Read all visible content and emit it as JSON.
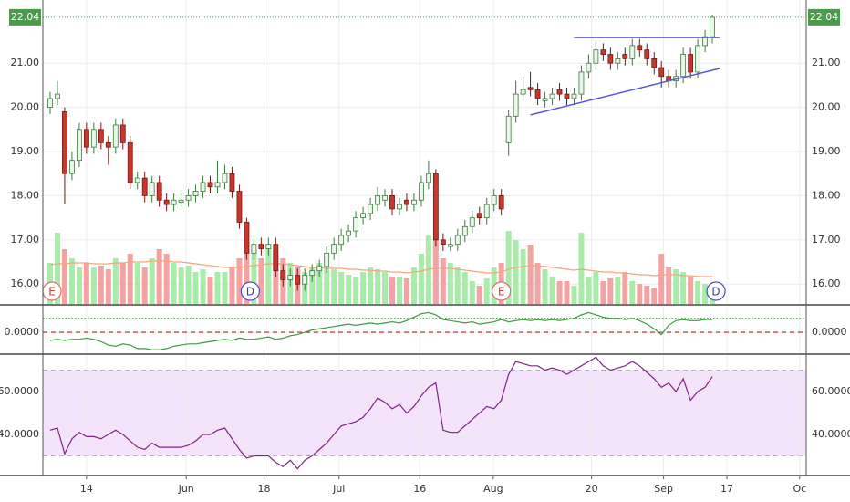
{
  "chart_data": [
    {
      "type": "candlestick",
      "open": [
        20.0,
        20.2,
        19.9,
        18.5,
        18.8,
        19.5,
        19.1,
        19.5,
        19.2,
        19.1,
        19.6,
        19.2,
        18.3,
        18.4,
        18.0,
        18.3,
        17.9,
        17.8,
        17.85,
        17.9,
        18.0,
        18.1,
        18.3,
        18.2,
        18.3,
        18.5,
        18.1,
        17.4,
        16.7,
        16.9,
        16.8,
        16.9,
        16.3,
        16.1,
        16.2,
        16.0,
        16.2,
        16.3,
        16.4,
        16.7,
        16.9,
        17.1,
        17.2,
        17.5,
        17.6,
        17.8,
        17.9,
        18.0,
        17.7,
        17.9,
        17.8,
        17.9,
        18.3,
        18.5,
        17.0,
        16.85,
        16.9,
        17.1,
        17.3,
        17.6,
        17.5,
        17.8,
        18.0,
        19.2,
        19.8,
        20.3,
        20.45,
        20.4,
        20.15,
        20.2,
        20.4,
        20.3,
        20.2,
        20.3,
        20.8,
        21.0,
        21.3,
        21.2,
        21.0,
        21.2,
        21.1,
        21.4,
        21.3,
        21.1,
        20.9,
        20.7,
        20.6,
        20.7,
        21.2,
        20.8,
        21.4,
        21.6
      ],
      "high": [
        20.35,
        20.6,
        20.0,
        19.0,
        19.65,
        19.65,
        19.65,
        19.65,
        19.35,
        19.75,
        19.75,
        19.35,
        18.55,
        18.55,
        18.45,
        18.45,
        18.05,
        18.05,
        18.05,
        18.15,
        18.25,
        18.45,
        18.45,
        18.8,
        18.7,
        18.65,
        18.25,
        17.5,
        17.1,
        17.05,
        17.05,
        17.05,
        16.45,
        16.35,
        16.35,
        16.35,
        16.45,
        16.55,
        16.85,
        17.05,
        17.25,
        17.35,
        17.65,
        17.75,
        17.95,
        18.2,
        18.15,
        18.15,
        17.95,
        18.05,
        18.05,
        18.45,
        18.8,
        18.6,
        17.15,
        17.05,
        17.25,
        17.45,
        17.65,
        17.75,
        17.95,
        18.15,
        18.15,
        19.95,
        20.6,
        20.7,
        20.8,
        20.55,
        20.35,
        20.45,
        20.55,
        20.45,
        20.45,
        20.95,
        21.2,
        21.55,
        21.45,
        21.35,
        21.25,
        21.35,
        21.55,
        21.55,
        21.45,
        21.25,
        21.05,
        20.85,
        20.85,
        21.35,
        21.35,
        21.55,
        21.75,
        22.1
      ],
      "low": [
        19.85,
        20.05,
        17.8,
        18.35,
        18.65,
        18.95,
        18.95,
        19.05,
        18.7,
        18.95,
        19.05,
        18.15,
        18.15,
        17.85,
        17.85,
        17.75,
        17.65,
        17.65,
        17.75,
        17.75,
        17.85,
        17.95,
        18.05,
        18.05,
        18.15,
        17.95,
        17.25,
        16.55,
        16.55,
        16.65,
        16.65,
        16.15,
        15.95,
        15.95,
        15.85,
        15.85,
        16.05,
        16.15,
        16.25,
        16.55,
        16.75,
        16.95,
        17.05,
        17.35,
        17.45,
        17.65,
        17.75,
        17.55,
        17.55,
        17.65,
        17.65,
        17.75,
        18.15,
        16.85,
        16.75,
        16.75,
        16.75,
        16.95,
        17.15,
        17.35,
        17.35,
        17.65,
        17.55,
        18.9,
        19.65,
        20.15,
        20.25,
        20.05,
        20.0,
        20.05,
        20.15,
        20.05,
        20.05,
        20.15,
        20.65,
        20.85,
        21.05,
        20.85,
        20.85,
        20.95,
        20.95,
        21.15,
        20.95,
        20.75,
        20.45,
        20.45,
        20.45,
        20.55,
        20.65,
        20.65,
        21.25,
        21.45
      ],
      "close": [
        20.2,
        20.3,
        18.5,
        18.8,
        19.5,
        19.1,
        19.5,
        19.2,
        19.1,
        19.6,
        19.2,
        18.3,
        18.4,
        18.0,
        18.3,
        17.9,
        17.8,
        17.9,
        17.9,
        18.0,
        18.1,
        18.3,
        18.2,
        18.3,
        18.5,
        18.1,
        17.4,
        16.7,
        16.9,
        16.8,
        16.9,
        16.3,
        16.1,
        16.2,
        16.0,
        16.2,
        16.3,
        16.4,
        16.7,
        16.9,
        17.1,
        17.2,
        17.5,
        17.6,
        17.8,
        18.0,
        18.0,
        17.7,
        17.8,
        17.8,
        17.9,
        18.3,
        18.5,
        17.0,
        16.9,
        16.9,
        17.1,
        17.3,
        17.5,
        17.5,
        17.8,
        18.0,
        17.7,
        19.8,
        20.3,
        20.4,
        20.4,
        20.2,
        20.2,
        20.3,
        20.3,
        20.2,
        20.3,
        20.8,
        21.0,
        21.3,
        21.2,
        21.0,
        21.1,
        21.1,
        21.4,
        21.3,
        21.1,
        20.9,
        20.7,
        20.6,
        20.7,
        21.2,
        20.8,
        21.4,
        21.6,
        22.04
      ],
      "up_color": "#e9f7e9",
      "up_border": "#3d7a3d",
      "down_color": "#c9372c",
      "down_border": "#6b1a14",
      "volume": {
        "values": [
          45,
          78,
          60,
          50,
          40,
          45,
          40,
          42,
          38,
          50,
          45,
          55,
          45,
          40,
          50,
          60,
          55,
          45,
          40,
          42,
          35,
          38,
          30,
          35,
          35,
          40,
          50,
          60,
          60,
          50,
          65,
          55,
          50,
          45,
          40,
          35,
          40,
          45,
          40,
          38,
          35,
          32,
          30,
          35,
          40,
          38,
          35,
          30,
          30,
          28,
          40,
          55,
          75,
          70,
          50,
          45,
          40,
          35,
          25,
          20,
          28,
          40,
          45,
          80,
          70,
          60,
          65,
          45,
          38,
          30,
          25,
          25,
          20,
          78,
          30,
          35,
          25,
          28,
          30,
          35,
          25,
          22,
          20,
          18,
          55,
          40,
          38,
          35,
          30,
          25,
          22,
          20
        ],
        "ylim": [
          0,
          100
        ],
        "up_color": "#a9eca9",
        "down_color": "#f4a3a3",
        "ma": [
          43,
          44,
          44,
          45,
          45,
          45,
          44,
          44,
          44,
          45,
          45,
          46,
          46,
          46,
          47,
          47,
          47,
          46,
          46,
          45,
          44,
          43,
          42,
          41,
          40,
          40,
          40,
          41,
          42,
          43,
          44,
          44,
          44,
          43,
          42,
          41,
          40,
          40,
          39,
          39,
          39,
          38,
          38,
          37,
          37,
          36,
          36,
          35,
          35,
          34,
          35,
          36,
          38,
          39,
          39,
          39,
          38,
          37,
          36,
          35,
          34,
          34,
          35,
          38,
          40,
          41,
          42,
          42,
          41,
          40,
          39,
          38,
          37,
          38,
          37,
          36,
          35,
          35,
          34,
          34,
          33,
          32,
          32,
          31,
          32,
          32,
          32,
          31,
          31,
          30,
          30,
          30
        ],
        "ma_color": "#f5a57d"
      },
      "events": [
        {
          "label": "E",
          "x": 0
        },
        {
          "label": "D",
          "x": 27.5
        },
        {
          "label": "E",
          "x": 62
        },
        {
          "label": "D",
          "x": 91.5
        }
      ],
      "trendlines": [
        {
          "x": [
            72,
            92
          ],
          "y": [
            21.58,
            21.58
          ]
        },
        {
          "x": [
            66,
            92
          ],
          "y": [
            19.83,
            20.88
          ]
        }
      ],
      "trendline_color": "#5757d9",
      "last_price_color": "#4c9a4c",
      "ylim": [
        15.55,
        22.43
      ],
      "yticks": [
        {
          "value": 16,
          "label": "16.00"
        },
        {
          "value": 17,
          "label": "17.00"
        },
        {
          "value": 18,
          "label": "18.00"
        },
        {
          "value": 19,
          "label": "19.00"
        },
        {
          "value": 20,
          "label": "20.00"
        },
        {
          "value": 21,
          "label": "21.00"
        }
      ],
      "xlim": [
        -1,
        103.9
      ],
      "xticks": [
        {
          "value": 5,
          "label": "14"
        },
        {
          "value": 18.7,
          "label": "Jun"
        },
        {
          "value": 29.4,
          "label": "18"
        },
        {
          "value": 39.7,
          "label": "Jul"
        },
        {
          "value": 50.8,
          "label": "16"
        },
        {
          "value": 60.9,
          "label": "Aug"
        },
        {
          "value": 74.4,
          "label": "20"
        },
        {
          "value": 84.3,
          "label": "Sep"
        },
        {
          "value": 93,
          "label": "17"
        },
        {
          "value": 103,
          "label": "Oc"
        }
      ],
      "grid": true
    },
    {
      "type": "line",
      "values": [
        -0.35,
        -0.3,
        -0.35,
        -0.3,
        -0.3,
        -0.25,
        -0.3,
        -0.4,
        -0.55,
        -0.6,
        -0.5,
        -0.55,
        -0.7,
        -0.7,
        -0.75,
        -0.75,
        -0.7,
        -0.6,
        -0.55,
        -0.5,
        -0.5,
        -0.45,
        -0.4,
        -0.35,
        -0.3,
        -0.35,
        -0.25,
        -0.3,
        -0.3,
        -0.25,
        -0.2,
        -0.3,
        -0.25,
        -0.15,
        -0.1,
        0.0,
        0.1,
        0.15,
        0.2,
        0.25,
        0.3,
        0.35,
        0.3,
        0.35,
        0.4,
        0.35,
        0.4,
        0.45,
        0.4,
        0.5,
        0.65,
        0.8,
        0.85,
        0.75,
        0.55,
        0.5,
        0.45,
        0.4,
        0.45,
        0.35,
        0.4,
        0.45,
        0.55,
        0.45,
        0.5,
        0.55,
        0.5,
        0.55,
        0.5,
        0.55,
        0.5,
        0.55,
        0.6,
        0.75,
        0.85,
        0.75,
        0.65,
        0.6,
        0.6,
        0.55,
        0.6,
        0.5,
        0.35,
        0.15,
        -0.1,
        0.3,
        0.5,
        0.55,
        0.5,
        0.5,
        0.55,
        0.55
      ],
      "color": "#3f9a3f",
      "hlines": [
        {
          "value": 0.6,
          "color": "#3f9a3f",
          "style": "dotted"
        },
        {
          "value": 0,
          "color": "#b5201a",
          "style": "dashed"
        }
      ],
      "ylim": [
        -0.9,
        1.1
      ],
      "yticks": [
        {
          "value": 0,
          "label": "0.0000"
        }
      ],
      "grid": true
    },
    {
      "type": "line",
      "values": [
        42,
        43,
        31,
        38,
        41,
        39,
        39,
        38,
        40,
        42,
        40,
        37,
        34,
        33,
        36,
        34,
        34,
        34,
        34,
        35,
        37,
        40,
        40,
        42,
        43,
        38,
        33,
        29,
        30,
        30,
        30,
        27,
        25,
        28,
        24,
        28,
        30,
        33,
        36,
        40,
        44,
        45,
        46,
        48,
        52,
        57,
        55,
        52,
        54,
        50,
        53,
        58,
        62,
        64,
        42,
        41,
        41,
        44,
        47,
        50,
        53,
        52,
        56,
        68,
        74,
        73,
        72,
        72,
        70,
        71,
        70,
        68,
        70,
        72,
        74,
        76,
        72,
        70,
        71,
        72,
        74,
        72,
        69,
        66,
        62,
        64,
        60,
        66,
        56,
        60,
        62,
        67
      ],
      "color": "#7d2680",
      "band": [
        30,
        70
      ],
      "band_color": "#f3e3fb",
      "band_line_color": "#b9a8bf",
      "ylim": [
        21.3,
        76.6
      ],
      "yticks": [
        {
          "value": 40,
          "label": "40.0000"
        },
        {
          "value": 60,
          "label": "60.0000"
        }
      ],
      "grid": true
    }
  ]
}
